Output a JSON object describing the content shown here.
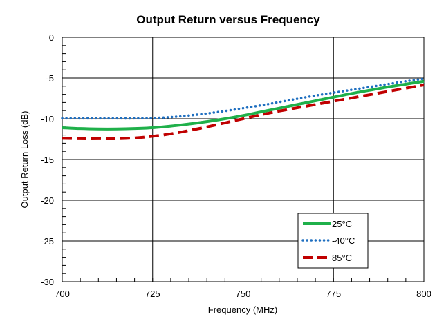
{
  "chart_data": {
    "type": "line",
    "title": "Output Return versus Frequency",
    "xlabel": "Frequency (MHz)",
    "ylabel": "Output Return Loss (dB)",
    "xlim": [
      700,
      800
    ],
    "ylim": [
      -30,
      0
    ],
    "x_ticks": [
      700,
      725,
      750,
      775,
      800
    ],
    "y_ticks": [
      0,
      -5,
      -10,
      -15,
      -20,
      -25,
      -30
    ],
    "grid": true,
    "legend_position": "bottom-right",
    "x": [
      700,
      705,
      710,
      715,
      720,
      725,
      730,
      735,
      740,
      745,
      750,
      755,
      760,
      765,
      770,
      775,
      780,
      785,
      790,
      795,
      800
    ],
    "series": [
      {
        "name": "25°C",
        "color": "#1fb04a",
        "style": "solid",
        "values": [
          -11.1,
          -11.2,
          -11.25,
          -11.25,
          -11.2,
          -11.1,
          -10.9,
          -10.65,
          -10.35,
          -10.0,
          -9.6,
          -9.15,
          -8.7,
          -8.25,
          -7.8,
          -7.35,
          -6.9,
          -6.5,
          -6.1,
          -5.75,
          -5.4
        ]
      },
      {
        "name": "-40°C",
        "color": "#1f6fc0",
        "style": "dotted",
        "values": [
          -9.95,
          -9.95,
          -9.95,
          -9.95,
          -9.95,
          -9.9,
          -9.8,
          -9.6,
          -9.35,
          -9.05,
          -8.7,
          -8.35,
          -7.95,
          -7.55,
          -7.15,
          -6.8,
          -6.45,
          -6.1,
          -5.75,
          -5.4,
          -5.1
        ]
      },
      {
        "name": "85°C",
        "color": "#c00000",
        "style": "dashed",
        "values": [
          -12.4,
          -12.45,
          -12.45,
          -12.45,
          -12.35,
          -12.15,
          -11.85,
          -11.45,
          -11.0,
          -10.5,
          -10.0,
          -9.5,
          -9.05,
          -8.65,
          -8.25,
          -7.85,
          -7.45,
          -7.05,
          -6.65,
          -6.25,
          -5.85
        ]
      }
    ]
  }
}
